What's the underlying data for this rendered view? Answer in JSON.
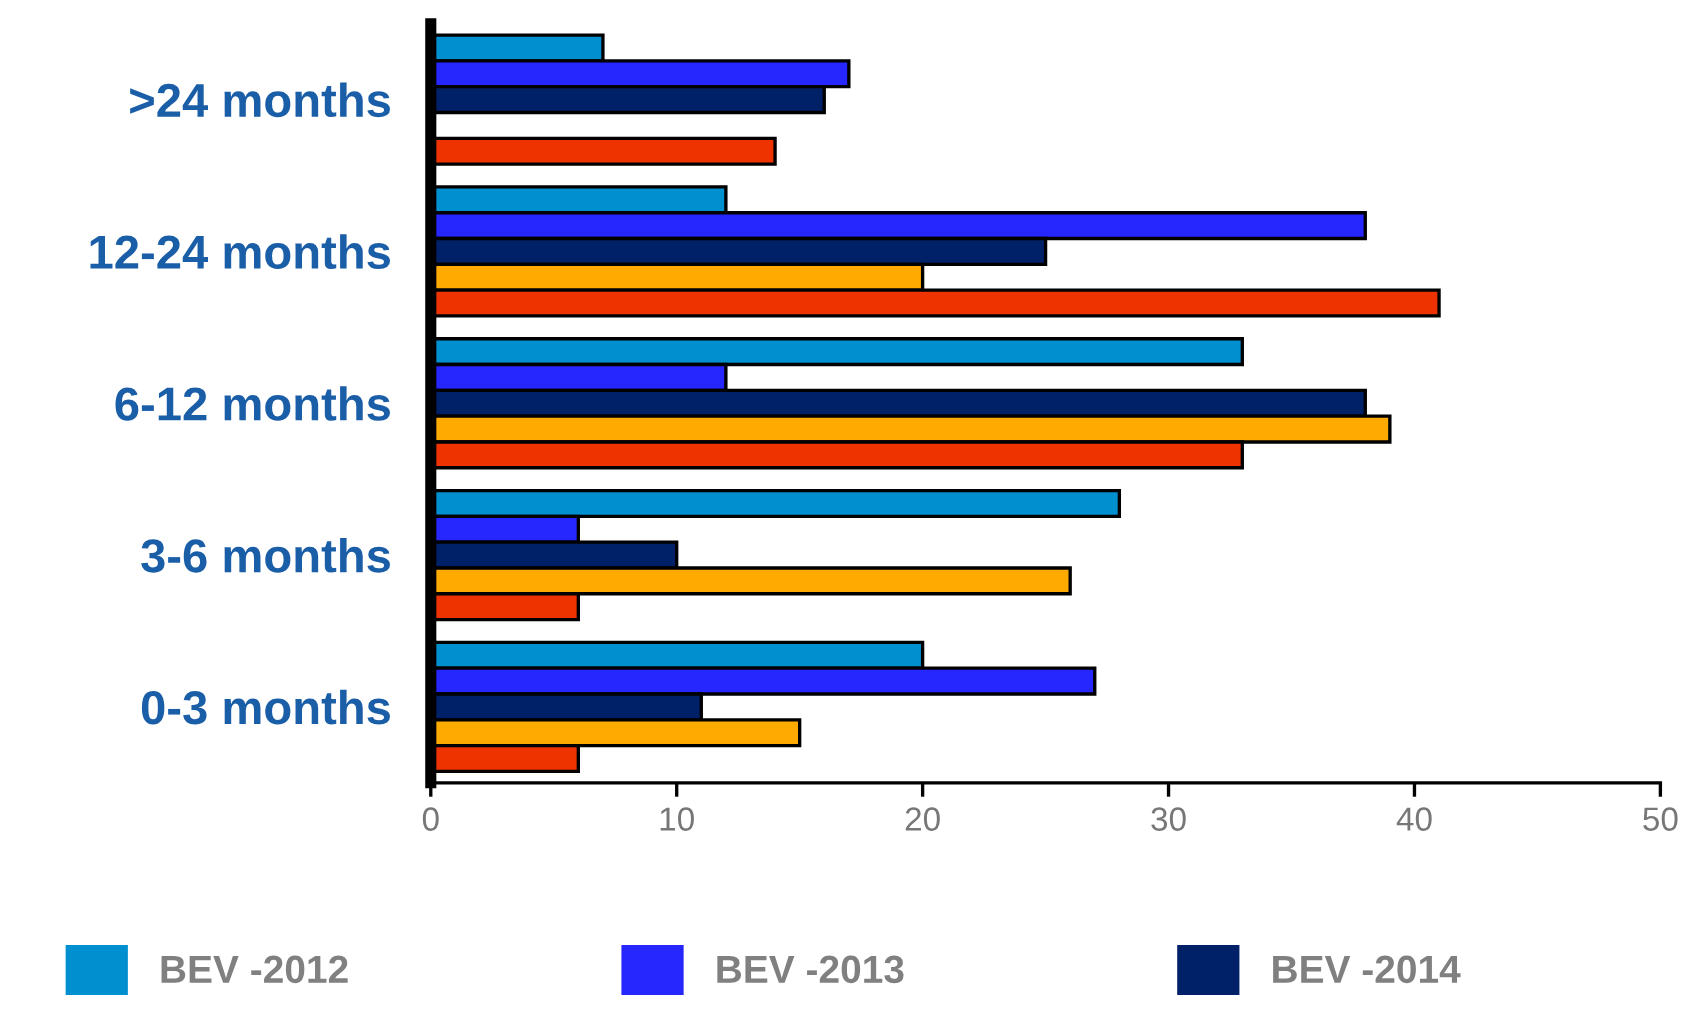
{
  "chart_data": {
    "type": "bar",
    "orientation": "horizontal",
    "categories": [
      ">24 months",
      "12-24 months",
      "6-12 months",
      "3-6 months",
      "0-3 months"
    ],
    "series": [
      {
        "name": "BEV -2012",
        "color": "#0090d0",
        "values": [
          7,
          12,
          33,
          28,
          20
        ]
      },
      {
        "name": "BEV -2013",
        "color": "#2626ff",
        "values": [
          17,
          38,
          12,
          6,
          27
        ]
      },
      {
        "name": "BEV -2014",
        "color": "#002068",
        "values": [
          16,
          25,
          38,
          10,
          11
        ]
      },
      {
        "color": "#ffaa00",
        "values": [
          null,
          20,
          39,
          26,
          15
        ]
      },
      {
        "color": "#ee3300",
        "values": [
          14,
          41,
          33,
          6,
          6
        ]
      }
    ],
    "xlim": [
      0,
      50
    ],
    "xticks": [
      0,
      10,
      20,
      30,
      40,
      50
    ],
    "grid": false,
    "legend": "bottom"
  }
}
